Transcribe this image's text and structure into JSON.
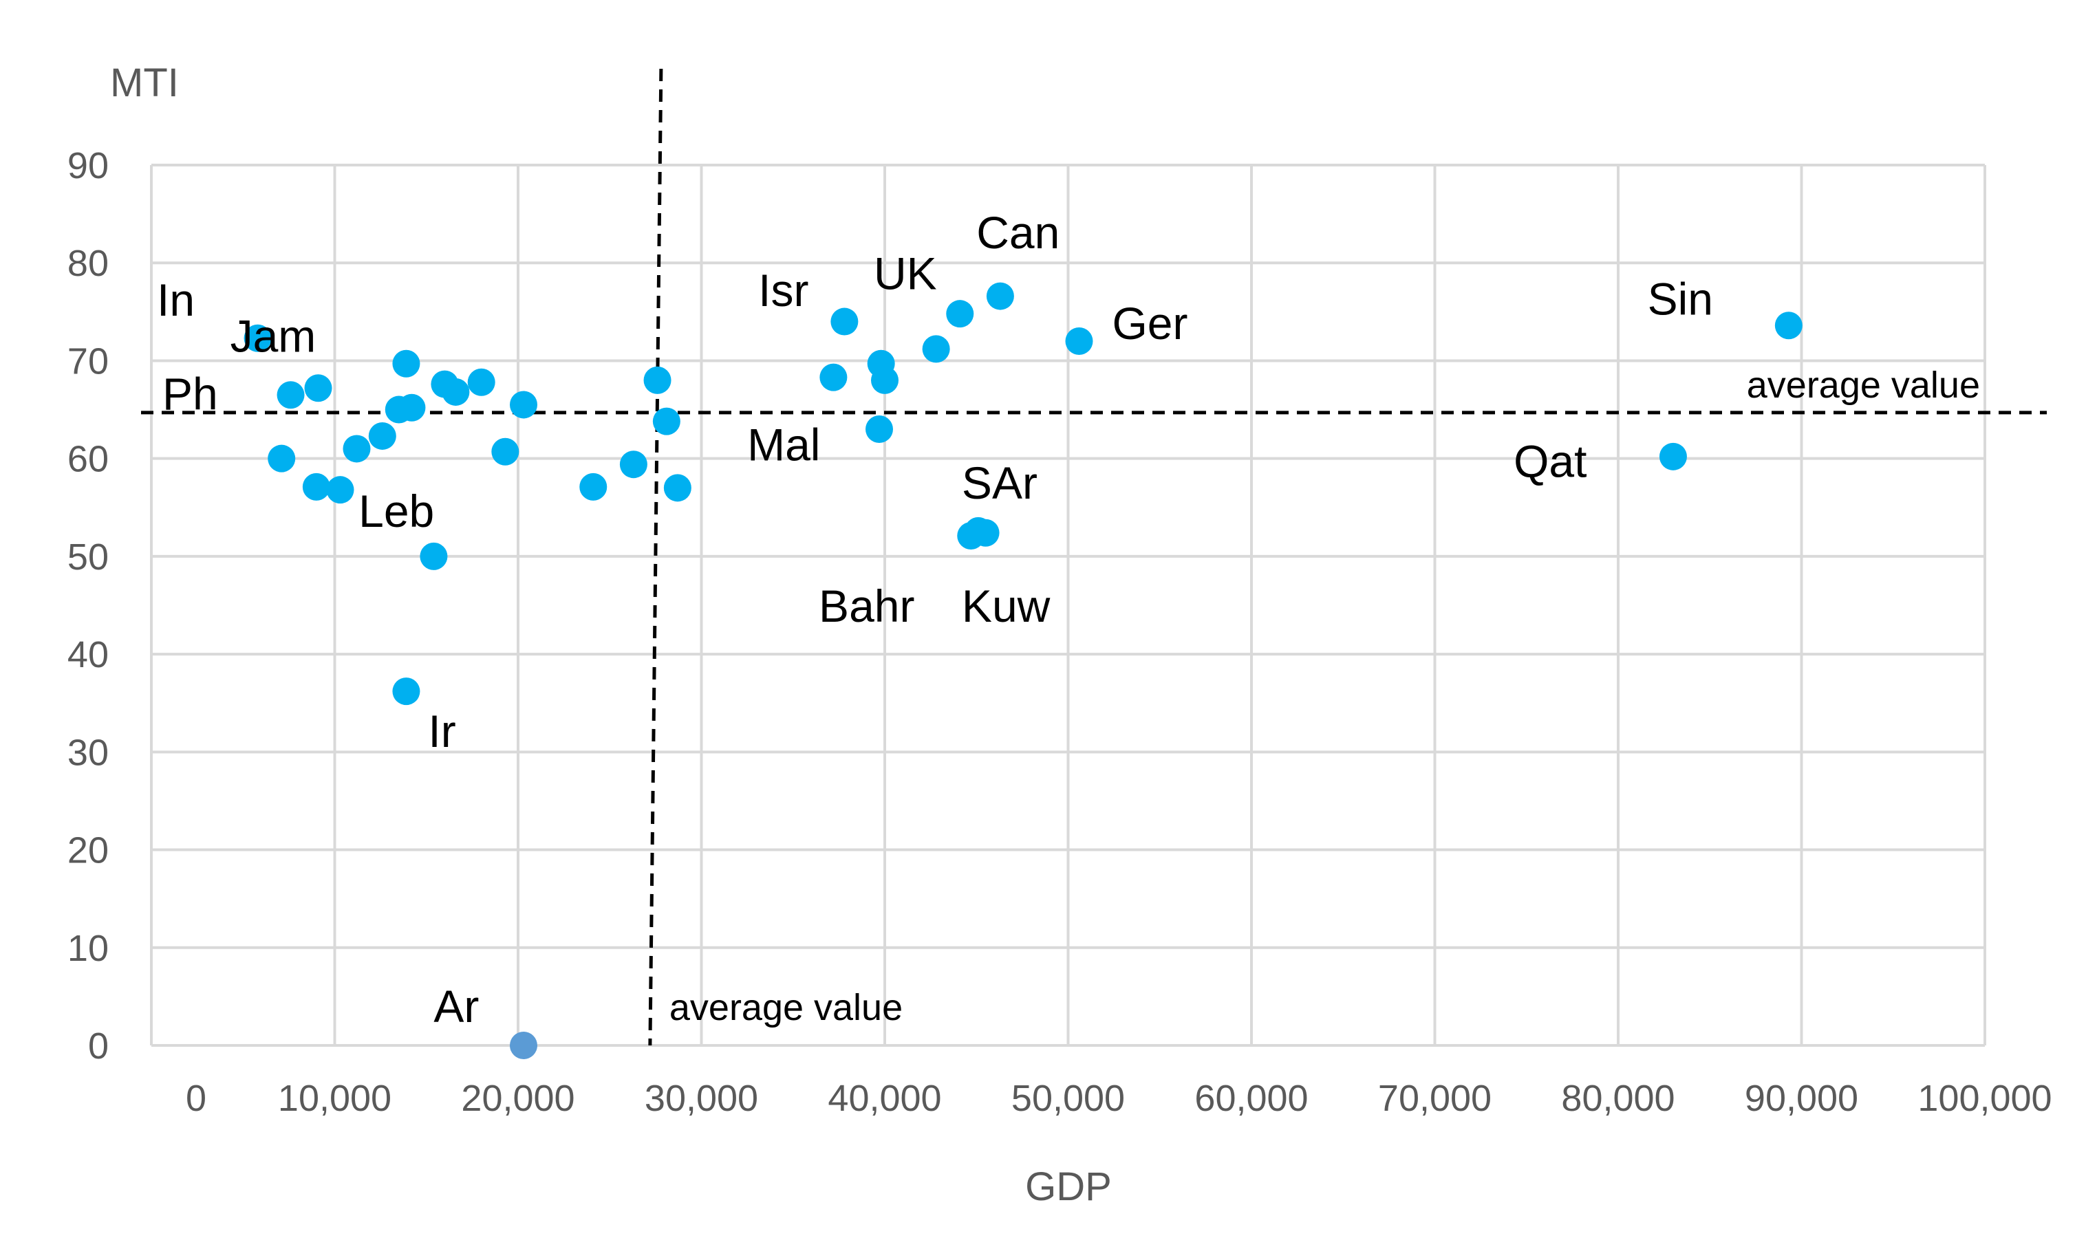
{
  "chart_data": {
    "type": "scatter",
    "xlabel": "GDP",
    "ylabel": "MTI",
    "xlim": [
      0,
      100000
    ],
    "ylim": [
      0,
      90
    ],
    "x_ticks": [
      0,
      10000,
      20000,
      30000,
      40000,
      50000,
      60000,
      70000,
      80000,
      90000,
      100000
    ],
    "x_tick_labels": [
      "0",
      "10,000",
      "20,000",
      "30,000",
      "40,000",
      "50,000",
      "60,000",
      "70,000",
      "80,000",
      "90,000",
      "100,000"
    ],
    "y_ticks": [
      0,
      10,
      20,
      30,
      40,
      50,
      60,
      70,
      80,
      90
    ],
    "y_tick_labels": [
      "0",
      "10",
      "20",
      "30",
      "40",
      "50",
      "60",
      "70",
      "80",
      "90"
    ],
    "grid": true,
    "point_color": "#00b0f0",
    "highlight_color": "#5b9bd5",
    "average_lines": {
      "x": 27500,
      "y": 64.7,
      "x_label": "average value",
      "y_label": "average value"
    },
    "points": [
      {
        "x": 5800,
        "y": 72.3
      },
      {
        "x": 7600,
        "y": 66.5
      },
      {
        "x": 9100,
        "y": 67.2
      },
      {
        "x": 7100,
        "y": 60.0
      },
      {
        "x": 9000,
        "y": 57.1
      },
      {
        "x": 10300,
        "y": 56.8
      },
      {
        "x": 11200,
        "y": 61.0
      },
      {
        "x": 12600,
        "y": 62.3
      },
      {
        "x": 13500,
        "y": 65.0
      },
      {
        "x": 14200,
        "y": 65.2
      },
      {
        "x": 13900,
        "y": 69.7
      },
      {
        "x": 16000,
        "y": 67.6
      },
      {
        "x": 16600,
        "y": 66.8
      },
      {
        "x": 18000,
        "y": 67.8
      },
      {
        "x": 19300,
        "y": 60.7
      },
      {
        "x": 20300,
        "y": 65.5
      },
      {
        "x": 15400,
        "y": 50.0
      },
      {
        "x": 13900,
        "y": 36.2
      },
      {
        "x": 24100,
        "y": 57.1
      },
      {
        "x": 26300,
        "y": 59.4
      },
      {
        "x": 27600,
        "y": 68.0
      },
      {
        "x": 28100,
        "y": 63.8
      },
      {
        "x": 28700,
        "y": 57.0
      },
      {
        "x": 37200,
        "y": 68.3
      },
      {
        "x": 37800,
        "y": 74.0
      },
      {
        "x": 39800,
        "y": 69.7
      },
      {
        "x": 40000,
        "y": 68.0
      },
      {
        "x": 39700,
        "y": 63.0
      },
      {
        "x": 42800,
        "y": 71.2
      },
      {
        "x": 44100,
        "y": 74.8
      },
      {
        "x": 46300,
        "y": 76.6
      },
      {
        "x": 50600,
        "y": 72.0
      },
      {
        "x": 44700,
        "y": 52.1
      },
      {
        "x": 45100,
        "y": 52.6
      },
      {
        "x": 45500,
        "y": 52.4
      },
      {
        "x": 83000,
        "y": 60.2
      },
      {
        "x": 89300,
        "y": 73.6
      },
      {
        "x": 20300,
        "y": 0.0,
        "highlight": true
      }
    ],
    "annotations": [
      {
        "text": "In",
        "x": 300,
        "y": 74.6
      },
      {
        "text": "Jam",
        "x": 4300,
        "y": 70.9
      },
      {
        "text": "Ph",
        "x": 600,
        "y": 65.0
      },
      {
        "text": "Leb",
        "x": 11300,
        "y": 53.0
      },
      {
        "text": "Ir",
        "x": 15100,
        "y": 30.5
      },
      {
        "text": "Ar",
        "x": 15400,
        "y": 2.4
      },
      {
        "text": "Isr",
        "x": 33100,
        "y": 75.6
      },
      {
        "text": "UK",
        "x": 39400,
        "y": 77.3
      },
      {
        "text": "Can",
        "x": 45000,
        "y": 81.5
      },
      {
        "text": "Ger",
        "x": 52400,
        "y": 72.2
      },
      {
        "text": "Mal",
        "x": 32500,
        "y": 59.8
      },
      {
        "text": "SAr",
        "x": 44200,
        "y": 55.9
      },
      {
        "text": "Bahr",
        "x": 36400,
        "y": 43.3
      },
      {
        "text": "Kuw",
        "x": 44200,
        "y": 43.3
      },
      {
        "text": "Sin",
        "x": 81600,
        "y": 74.7
      },
      {
        "text": "Qat",
        "x": 74300,
        "y": 58.1
      }
    ]
  }
}
